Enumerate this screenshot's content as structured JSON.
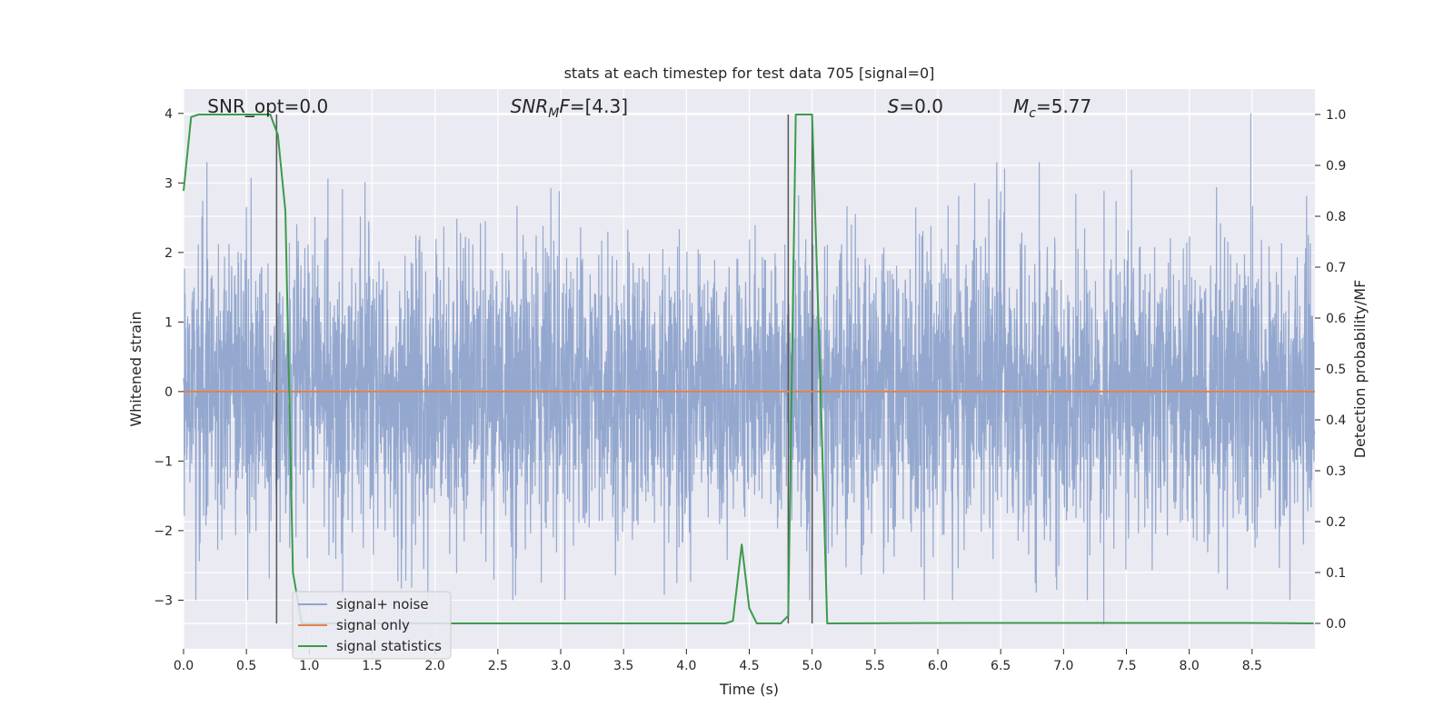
{
  "chart_data": {
    "type": "line",
    "title": "stats at each timestep for test data 705 [signal=0]",
    "xlabel": "Time (s)",
    "ylabel_left": "Whitened strain",
    "ylabel_right": "Detection probability/MF",
    "xlim": [
      0.0,
      9.0
    ],
    "ylim_left": [
      -3.7,
      4.35
    ],
    "ylim_right": [
      -0.05,
      1.05
    ],
    "x_ticks": [
      "0.0",
      "0.5",
      "1.0",
      "1.5",
      "2.0",
      "2.5",
      "3.0",
      "3.5",
      "4.0",
      "4.5",
      "5.0",
      "5.5",
      "6.0",
      "6.5",
      "7.0",
      "7.5",
      "8.0",
      "8.5"
    ],
    "y_ticks_left": [
      "−3",
      "−2",
      "−1",
      "0",
      "1",
      "2",
      "3",
      "4"
    ],
    "y_ticks_right": [
      "0.0",
      "0.1",
      "0.2",
      "0.3",
      "0.4",
      "0.5",
      "0.6",
      "0.7",
      "0.8",
      "0.9",
      "1.0"
    ],
    "grid": true,
    "annotations": [
      {
        "text": "SNR_opt=0.0",
        "x": 0.19
      },
      {
        "text": "SNR_MF=[4.3]",
        "x": 2.6,
        "math": "mf"
      },
      {
        "text": "S=0.0",
        "x": 5.6,
        "math": "s"
      },
      {
        "text": "M_c=5.77",
        "x": 6.6,
        "math": "mc"
      }
    ],
    "vertical_lines_s": [
      0.74,
      4.81,
      5.0
    ],
    "series": [
      {
        "name": "signal+ noise",
        "color": "#8fa4cc",
        "axis": "left",
        "kind": "noise",
        "sample_rate_hz": 512,
        "amplitude_std": 1.05,
        "spikes": [
          {
            "x": 7.32,
            "y": -3.35
          },
          {
            "x": 8.49,
            "y": 4.0
          }
        ]
      },
      {
        "name": "signal only",
        "color": "#dd8452",
        "axis": "left",
        "x": [
          0.0,
          9.0
        ],
        "y": [
          0.0,
          0.0
        ]
      },
      {
        "name": "signal statistics",
        "color": "#3c9b4a",
        "axis": "right",
        "x": [
          0.0,
          0.06,
          0.12,
          0.19,
          0.25,
          0.31,
          0.37,
          0.44,
          0.5,
          0.56,
          0.62,
          0.69,
          0.75,
          0.81,
          0.87,
          0.94,
          4.31,
          4.37,
          4.44,
          4.5,
          4.56,
          4.62,
          4.69,
          4.75,
          4.81,
          4.87,
          4.94,
          5.0,
          5.06,
          5.12,
          6.3,
          8.4,
          8.99
        ],
        "y": [
          0.85,
          0.995,
          1.0,
          1.0,
          1.0,
          1.0,
          1.0,
          1.0,
          1.0,
          1.0,
          1.0,
          1.0,
          0.96,
          0.81,
          0.1,
          0.0,
          0.0,
          0.005,
          0.155,
          0.03,
          0.0,
          0.0,
          0.0,
          0.0,
          0.015,
          1.0,
          1.0,
          1.0,
          0.52,
          0.0,
          0.001,
          0.001,
          0.0
        ]
      }
    ],
    "legend": {
      "placement": "lower-left",
      "entries": [
        "signal+ noise",
        "signal only",
        "signal statistics"
      ]
    }
  }
}
